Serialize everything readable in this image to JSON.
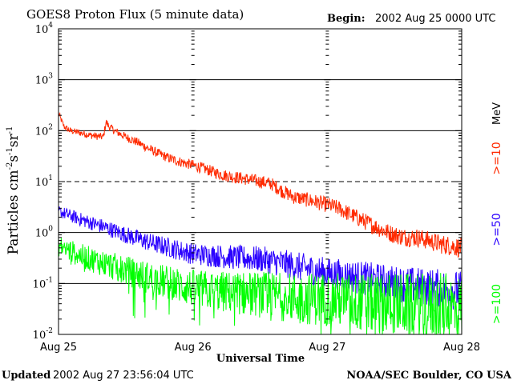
{
  "header": {
    "title": "GOES8 Proton Flux (5 minute data)",
    "begin_label": "Begin:",
    "begin_value": "2002 Aug 25 0000 UTC"
  },
  "footer": {
    "updated_label": "Updated",
    "updated_value": "2002 Aug 27 23:56:04 UTC",
    "credit": "NOAA/SEC Boulder, CO USA"
  },
  "axes": {
    "xlabel": "Universal Time",
    "ylabel_text": "Particles cm",
    "ylabel_exp1": "-2",
    "ylabel_mid1": "s",
    "ylabel_exp2": "-1",
    "ylabel_mid2": "sr",
    "ylabel_exp3": "-1"
  },
  "legend": {
    "unit": "MeV",
    "items": [
      {
        "label": ">=10",
        "color": "#ff2a00"
      },
      {
        "label": ">=50",
        "color": "#2a00ff"
      },
      {
        "label": ">=100",
        "color": "#00ff00"
      }
    ]
  },
  "chart_data": {
    "type": "line",
    "title": "GOES8 Proton Flux (5 minute data)",
    "xlabel": "Universal Time",
    "ylabel": "Particles cm-2s-1sr-1",
    "yscale": "log",
    "xlim": [
      0,
      72
    ],
    "ylim": [
      0.01,
      10000
    ],
    "x_unit": "hours since 2002 Aug 25 0000 UTC",
    "x_ticks": [
      {
        "value": 0,
        "label": "Aug 25"
      },
      {
        "value": 24,
        "label": "Aug 26"
      },
      {
        "value": 48,
        "label": "Aug 27"
      },
      {
        "value": 72,
        "label": "Aug 28"
      }
    ],
    "y_ticks": [
      {
        "value": 0.01,
        "base": "10",
        "exp": "-2"
      },
      {
        "value": 0.1,
        "base": "10",
        "exp": "-1"
      },
      {
        "value": 1,
        "base": "10",
        "exp": "0"
      },
      {
        "value": 10,
        "base": "10",
        "exp": "1"
      },
      {
        "value": 100,
        "base": "10",
        "exp": "2"
      },
      {
        "value": 1000,
        "base": "10",
        "exp": "3"
      },
      {
        "value": 10000,
        "base": "10",
        "exp": "4"
      }
    ],
    "reference_lines": [
      {
        "value": 0.1,
        "style": "solid"
      },
      {
        "value": 1,
        "style": "solid"
      },
      {
        "value": 10,
        "style": "dashed"
      },
      {
        "value": 100,
        "style": "solid"
      },
      {
        "value": 1000,
        "style": "solid"
      }
    ],
    "series": [
      {
        "name": ">=10 MeV",
        "color": "#ff2a00",
        "x": [
          0,
          0.5,
          1,
          2,
          4,
          6,
          8,
          8.5,
          9,
          10,
          12,
          14,
          16,
          18,
          20,
          22,
          24,
          26,
          28,
          30,
          32,
          34,
          36,
          38,
          40,
          42,
          44,
          46,
          48,
          50,
          52,
          54,
          56,
          58,
          60,
          62,
          64,
          66,
          68,
          70,
          72
        ],
        "values": [
          220,
          160,
          120,
          100,
          90,
          80,
          75,
          150,
          120,
          100,
          75,
          60,
          45,
          35,
          28,
          24,
          21,
          18,
          15,
          13,
          12,
          11,
          10,
          9,
          6.5,
          5,
          4.5,
          4,
          3.5,
          3,
          2.3,
          1.8,
          1.4,
          1.1,
          0.9,
          0.8,
          0.8,
          0.7,
          0.6,
          0.55,
          0.5
        ],
        "noise": 0.2
      },
      {
        "name": ">=50 MeV",
        "color": "#2a00ff",
        "x": [
          0,
          4,
          8,
          12,
          16,
          20,
          24,
          28,
          32,
          36,
          40,
          44,
          48,
          52,
          56,
          60,
          64,
          68,
          72
        ],
        "values": [
          2.6,
          1.8,
          1.3,
          0.9,
          0.65,
          0.5,
          0.38,
          0.35,
          0.32,
          0.3,
          0.25,
          0.2,
          0.16,
          0.14,
          0.12,
          0.1,
          0.09,
          0.08,
          0.07
        ],
        "noise": 0.4
      },
      {
        "name": ">=100 MeV",
        "color": "#00ff00",
        "x": [
          0,
          4,
          8,
          12,
          16,
          20,
          24,
          28,
          32,
          36,
          40,
          44,
          48,
          52,
          56,
          60,
          64,
          68,
          72
        ],
        "values": [
          0.55,
          0.35,
          0.25,
          0.18,
          0.13,
          0.1,
          0.08,
          0.07,
          0.065,
          0.06,
          0.055,
          0.05,
          0.05,
          0.045,
          0.04,
          0.04,
          0.035,
          0.035,
          0.03
        ],
        "noise": 0.7
      }
    ]
  }
}
